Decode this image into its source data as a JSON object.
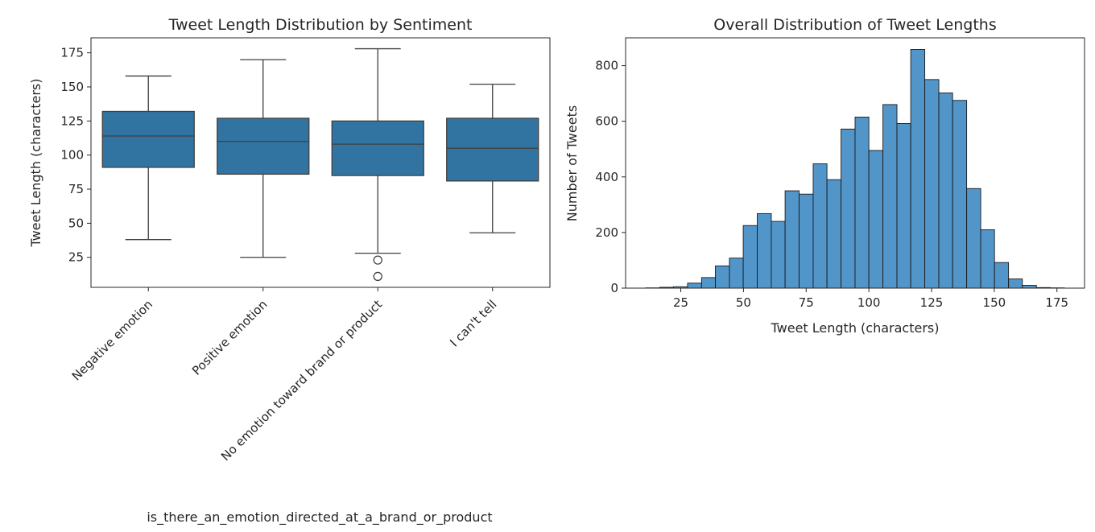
{
  "chart_data": [
    {
      "type": "box",
      "title": "Tweet Length Distribution by Sentiment",
      "xlabel": "is_there_an_emotion_directed_at_a_brand_or_product",
      "ylabel": "Tweet Length (characters)",
      "ylim": [
        3,
        186
      ],
      "yticks": [
        25,
        50,
        75,
        100,
        125,
        150,
        175
      ],
      "grid": false,
      "color": "#3274a1",
      "categories": [
        "Negative emotion",
        "Positive emotion",
        "No emotion toward brand or product",
        "I can't tell"
      ],
      "boxes": [
        {
          "whisker_low": 38,
          "q1": 91,
          "median": 114,
          "q3": 132,
          "whisker_high": 158,
          "outliers": []
        },
        {
          "whisker_low": 25,
          "q1": 86,
          "median": 110,
          "q3": 127,
          "whisker_high": 170,
          "outliers": []
        },
        {
          "whisker_low": 28,
          "q1": 85,
          "median": 108,
          "q3": 125,
          "whisker_high": 178,
          "outliers": [
            23,
            11
          ]
        },
        {
          "whisker_low": 43,
          "q1": 81,
          "median": 105,
          "q3": 127,
          "whisker_high": 152,
          "outliers": []
        }
      ]
    },
    {
      "type": "histogram",
      "title": "Overall Distribution of Tweet Lengths",
      "xlabel": "Tweet Length (characters)",
      "ylabel": "Number of Tweets",
      "xlim": [
        3,
        186
      ],
      "ylim": [
        0,
        900
      ],
      "xticks": [
        25,
        50,
        75,
        100,
        125,
        150,
        175
      ],
      "yticks": [
        0,
        200,
        400,
        600,
        800
      ],
      "grid": false,
      "color": "#5295c9",
      "bins": [
        {
          "x0": 11.0,
          "x1": 16.6,
          "count": 1
        },
        {
          "x0": 16.6,
          "x1": 22.1,
          "count": 3
        },
        {
          "x0": 22.1,
          "x1": 27.7,
          "count": 5
        },
        {
          "x0": 27.7,
          "x1": 33.3,
          "count": 18
        },
        {
          "x0": 33.3,
          "x1": 38.8,
          "count": 38
        },
        {
          "x0": 38.8,
          "x1": 44.4,
          "count": 80
        },
        {
          "x0": 44.4,
          "x1": 49.9,
          "count": 108
        },
        {
          "x0": 49.9,
          "x1": 55.5,
          "count": 225
        },
        {
          "x0": 55.5,
          "x1": 61.1,
          "count": 268
        },
        {
          "x0": 61.1,
          "x1": 66.6,
          "count": 240
        },
        {
          "x0": 66.6,
          "x1": 72.2,
          "count": 350
        },
        {
          "x0": 72.2,
          "x1": 77.8,
          "count": 338
        },
        {
          "x0": 77.8,
          "x1": 83.3,
          "count": 447
        },
        {
          "x0": 83.3,
          "x1": 88.9,
          "count": 390
        },
        {
          "x0": 88.9,
          "x1": 94.5,
          "count": 572
        },
        {
          "x0": 94.5,
          "x1": 100.0,
          "count": 615
        },
        {
          "x0": 100.0,
          "x1": 105.6,
          "count": 495
        },
        {
          "x0": 105.6,
          "x1": 111.2,
          "count": 660
        },
        {
          "x0": 111.2,
          "x1": 116.7,
          "count": 592
        },
        {
          "x0": 116.7,
          "x1": 122.3,
          "count": 858
        },
        {
          "x0": 122.3,
          "x1": 127.9,
          "count": 750
        },
        {
          "x0": 127.9,
          "x1": 133.4,
          "count": 702
        },
        {
          "x0": 133.4,
          "x1": 139.0,
          "count": 675
        },
        {
          "x0": 139.0,
          "x1": 144.6,
          "count": 358
        },
        {
          "x0": 144.6,
          "x1": 150.1,
          "count": 210
        },
        {
          "x0": 150.1,
          "x1": 155.7,
          "count": 92
        },
        {
          "x0": 155.7,
          "x1": 161.2,
          "count": 33
        },
        {
          "x0": 161.2,
          "x1": 166.8,
          "count": 10
        },
        {
          "x0": 166.8,
          "x1": 172.4,
          "count": 2
        },
        {
          "x0": 172.4,
          "x1": 178.0,
          "count": 1
        }
      ]
    }
  ]
}
